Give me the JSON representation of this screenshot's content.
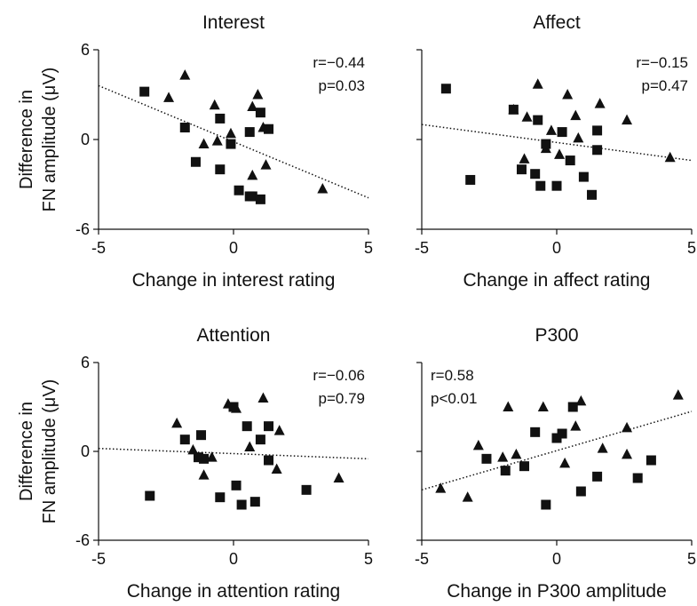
{
  "y_axis_label_line1": "Difference in",
  "y_axis_label_line2": "FN amplitude (μV)",
  "chart_data": [
    {
      "type": "scatter",
      "title": "Interest",
      "xlabel": "Change in interest rating",
      "ylabel": "Difference in FN amplitude (μV)",
      "xlim": [
        -5,
        5
      ],
      "ylim": [
        -6,
        6
      ],
      "x_ticks": [
        "-5",
        "0",
        "5"
      ],
      "y_ticks": [
        "6",
        "0",
        "-6"
      ],
      "stats": [
        "r=−0.44",
        "p=0.03"
      ],
      "trendline": {
        "x": [
          -5,
          5
        ],
        "y": [
          3.6,
          -3.9
        ]
      },
      "series": [
        {
          "marker": "triangle",
          "points": [
            [
              -1.8,
              4.3
            ],
            [
              -2.4,
              2.8
            ],
            [
              -0.7,
              2.3
            ],
            [
              -1.1,
              -0.3
            ],
            [
              -0.6,
              -0.1
            ],
            [
              -0.1,
              0.4
            ],
            [
              0.7,
              2.2
            ],
            [
              0.9,
              3.0
            ],
            [
              1.1,
              0.8
            ],
            [
              1.2,
              -1.7
            ],
            [
              0.7,
              -2.4
            ],
            [
              3.3,
              -3.3
            ]
          ]
        },
        {
          "marker": "square",
          "points": [
            [
              -3.3,
              3.2
            ],
            [
              -1.8,
              0.8
            ],
            [
              -1.4,
              -1.5
            ],
            [
              -0.5,
              1.4
            ],
            [
              -0.5,
              -2.0
            ],
            [
              -0.1,
              -0.3
            ],
            [
              0.2,
              -3.4
            ],
            [
              0.6,
              -3.8
            ],
            [
              0.6,
              0.5
            ],
            [
              0.7,
              -3.8
            ],
            [
              1.0,
              -4.0
            ],
            [
              1.0,
              1.8
            ],
            [
              1.3,
              0.7
            ]
          ]
        }
      ]
    },
    {
      "type": "scatter",
      "title": "Affect",
      "xlabel": "Change in affect rating",
      "ylabel": "",
      "xlim": [
        -5,
        5
      ],
      "ylim": [
        -6,
        6
      ],
      "x_ticks": [
        "-5",
        "0",
        "5"
      ],
      "y_ticks": [
        "",
        "",
        ""
      ],
      "stats": [
        "r=−0.15",
        "p=0.47"
      ],
      "trendline": {
        "x": [
          -5,
          5
        ],
        "y": [
          1.0,
          -1.4
        ]
      },
      "series": [
        {
          "marker": "triangle",
          "points": [
            [
              -0.7,
              3.7
            ],
            [
              0.4,
              3.0
            ],
            [
              -1.6,
              2.0
            ],
            [
              -1.1,
              1.5
            ],
            [
              0.7,
              1.6
            ],
            [
              1.6,
              2.4
            ],
            [
              2.6,
              1.3
            ],
            [
              -0.2,
              0.6
            ],
            [
              0.8,
              0.1
            ],
            [
              -1.2,
              -1.3
            ],
            [
              -0.4,
              -0.6
            ],
            [
              0.1,
              -1.0
            ],
            [
              4.2,
              -1.2
            ]
          ]
        },
        {
          "marker": "square",
          "points": [
            [
              -4.1,
              3.4
            ],
            [
              -1.6,
              2.0
            ],
            [
              -0.7,
              1.3
            ],
            [
              0.2,
              0.5
            ],
            [
              1.5,
              0.6
            ],
            [
              1.5,
              -0.7
            ],
            [
              -0.4,
              -0.3
            ],
            [
              0.5,
              -1.4
            ],
            [
              -1.3,
              -2.0
            ],
            [
              -0.8,
              -2.3
            ],
            [
              -0.6,
              -3.1
            ],
            [
              -3.2,
              -2.7
            ],
            [
              0.0,
              -3.1
            ],
            [
              1.0,
              -2.5
            ],
            [
              1.3,
              -3.7
            ]
          ]
        }
      ]
    },
    {
      "type": "scatter",
      "title": "Attention",
      "xlabel": "Change in attention rating",
      "ylabel": "Difference in FN amplitude (μV)",
      "xlim": [
        -5,
        5
      ],
      "ylim": [
        -6,
        6
      ],
      "x_ticks": [
        "-5",
        "0",
        "5"
      ],
      "y_ticks": [
        "6",
        "0",
        "-6"
      ],
      "stats": [
        "r=−0.06",
        "p=0.79"
      ],
      "trendline": {
        "x": [
          -5,
          5
        ],
        "y": [
          0.2,
          -0.5
        ]
      },
      "series": [
        {
          "marker": "triangle",
          "points": [
            [
              -2.1,
              1.9
            ],
            [
              -1.5,
              0.1
            ],
            [
              -1.1,
              -1.6
            ],
            [
              -0.2,
              3.2
            ],
            [
              0.1,
              2.9
            ],
            [
              1.1,
              3.6
            ],
            [
              1.7,
              1.4
            ],
            [
              0.6,
              0.3
            ],
            [
              1.6,
              -1.2
            ],
            [
              -0.8,
              -0.4
            ],
            [
              3.9,
              -1.8
            ]
          ]
        },
        {
          "marker": "square",
          "points": [
            [
              -3.1,
              -3.0
            ],
            [
              -1.8,
              0.8
            ],
            [
              -1.2,
              1.1
            ],
            [
              -1.3,
              -0.4
            ],
            [
              -1.1,
              -0.5
            ],
            [
              0.0,
              3.0
            ],
            [
              0.5,
              1.7
            ],
            [
              1.0,
              0.8
            ],
            [
              1.3,
              1.7
            ],
            [
              1.3,
              -0.6
            ],
            [
              0.1,
              -2.3
            ],
            [
              -0.5,
              -3.1
            ],
            [
              0.3,
              -3.6
            ],
            [
              0.8,
              -3.4
            ],
            [
              2.7,
              -2.6
            ]
          ]
        }
      ]
    },
    {
      "type": "scatter",
      "title": "P300",
      "xlabel": "Change in P300 amplitude",
      "ylabel": "",
      "xlim": [
        -5,
        5
      ],
      "ylim": [
        -6,
        6
      ],
      "x_ticks": [
        "-5",
        "0",
        "5"
      ],
      "y_ticks": [
        "",
        "",
        ""
      ],
      "stats": [
        "r=0.58",
        "p<0.01"
      ],
      "trendline": {
        "x": [
          -5,
          5
        ],
        "y": [
          -2.6,
          2.7
        ]
      },
      "series": [
        {
          "marker": "triangle",
          "points": [
            [
              -4.3,
              -2.5
            ],
            [
              -3.3,
              -3.1
            ],
            [
              -2.9,
              0.4
            ],
            [
              -1.8,
              3.0
            ],
            [
              -1.5,
              -0.2
            ],
            [
              -0.5,
              3.0
            ],
            [
              0.9,
              3.4
            ],
            [
              0.7,
              1.7
            ],
            [
              2.6,
              1.6
            ],
            [
              2.6,
              -0.2
            ],
            [
              1.7,
              0.2
            ],
            [
              0.3,
              -0.8
            ],
            [
              -2.0,
              -0.4
            ],
            [
              4.5,
              3.8
            ]
          ]
        },
        {
          "marker": "square",
          "points": [
            [
              -2.6,
              -0.5
            ],
            [
              -1.9,
              -1.3
            ],
            [
              -1.2,
              -1.0
            ],
            [
              -0.8,
              1.3
            ],
            [
              0.0,
              0.9
            ],
            [
              0.2,
              1.2
            ],
            [
              0.6,
              3.0
            ],
            [
              0.9,
              -2.7
            ],
            [
              1.5,
              -1.7
            ],
            [
              -0.4,
              -3.6
            ],
            [
              3.0,
              -1.8
            ],
            [
              3.5,
              -0.6
            ]
          ]
        }
      ]
    }
  ]
}
